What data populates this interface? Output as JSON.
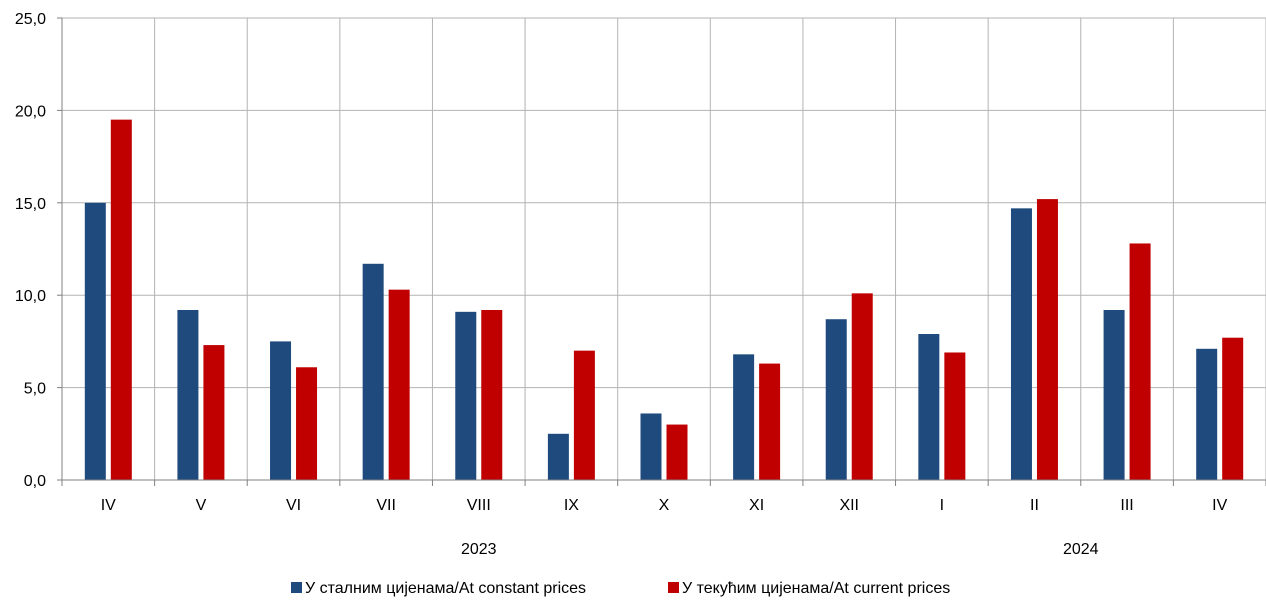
{
  "chart_data": {
    "type": "bar",
    "categories": [
      "IV",
      "V",
      "VI",
      "VII",
      "VIII",
      "IX",
      "X",
      "XI",
      "XII",
      "I",
      "II",
      "III",
      "IV"
    ],
    "year_groups": [
      {
        "label": "2023",
        "start": 0,
        "end": 8
      },
      {
        "label": "2024",
        "start": 9,
        "end": 12
      }
    ],
    "series": [
      {
        "name": "У сталним цијенама/At constant prices",
        "color": "#1f4a7e",
        "values": [
          15.0,
          9.2,
          7.5,
          11.7,
          9.1,
          2.5,
          3.6,
          6.8,
          8.7,
          7.9,
          14.7,
          9.2,
          7.1
        ]
      },
      {
        "name": "У текућим цијенама/At current prices",
        "color": "#c00000",
        "values": [
          19.5,
          7.3,
          6.1,
          10.3,
          9.2,
          7.0,
          3.0,
          6.3,
          10.1,
          6.9,
          15.2,
          12.8,
          7.7
        ]
      }
    ],
    "ylim": [
      0,
      25
    ],
    "yticks": [
      "0,0",
      "5,0",
      "10,0",
      "15,0",
      "20,0",
      "25,0"
    ],
    "ytick_values": [
      0,
      5,
      10,
      15,
      20,
      25
    ],
    "grid": true,
    "legend": "bottom"
  }
}
